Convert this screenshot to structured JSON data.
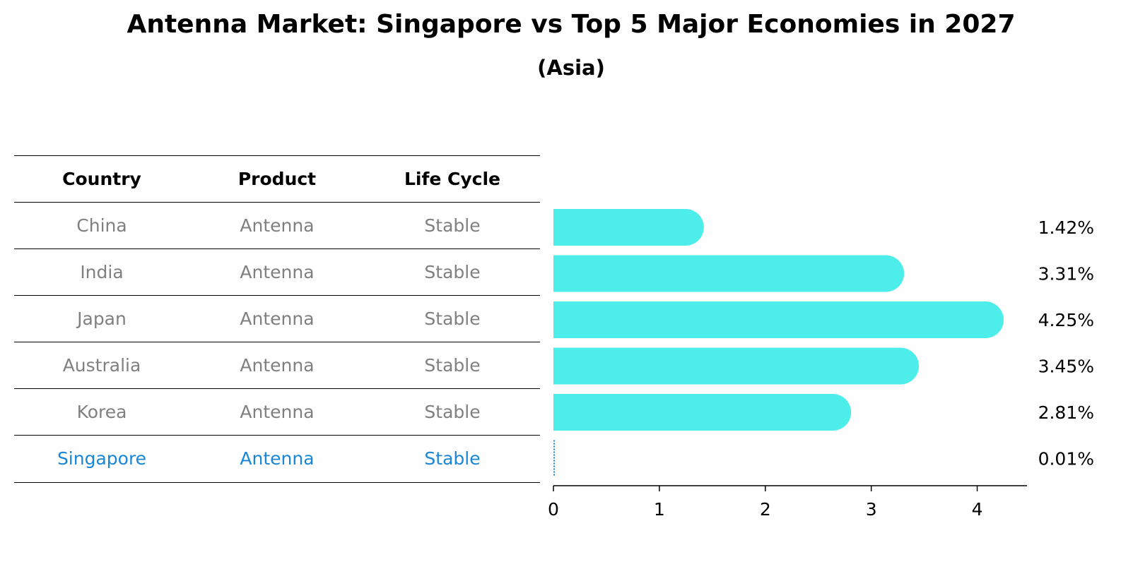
{
  "title": "Antenna Market: Singapore vs Top 5 Major Economies in 2027",
  "subtitle": "(Asia)",
  "table": {
    "headers": [
      "Country",
      "Product",
      "Life Cycle"
    ],
    "rows": [
      {
        "country": "China",
        "product": "Antenna",
        "life_cycle": "Stable"
      },
      {
        "country": "India",
        "product": "Antenna",
        "life_cycle": "Stable"
      },
      {
        "country": "Japan",
        "product": "Antenna",
        "life_cycle": "Stable"
      },
      {
        "country": "Australia",
        "product": "Antenna",
        "life_cycle": "Stable"
      },
      {
        "country": "Korea",
        "product": "Antenna",
        "life_cycle": "Stable"
      },
      {
        "country": "Singapore",
        "product": "Antenna",
        "life_cycle": "Stable"
      }
    ]
  },
  "chart_data": {
    "type": "bar",
    "orientation": "horizontal",
    "categories": [
      "China",
      "India",
      "Japan",
      "Australia",
      "Korea",
      "Singapore"
    ],
    "values": [
      1.42,
      3.31,
      4.25,
      3.45,
      2.81,
      0.01
    ],
    "value_labels": [
      "1.42%",
      "3.31%",
      "4.25%",
      "3.45%",
      "2.81%",
      "0.01%"
    ],
    "xticks": [
      0,
      1,
      2,
      3,
      4
    ],
    "xlim": [
      0,
      4.47
    ],
    "highlight": "Singapore",
    "colors": {
      "bar": "#4dede9",
      "highlight": "#1a86d6",
      "text": "#000000",
      "muted_text": "#808080"
    }
  }
}
